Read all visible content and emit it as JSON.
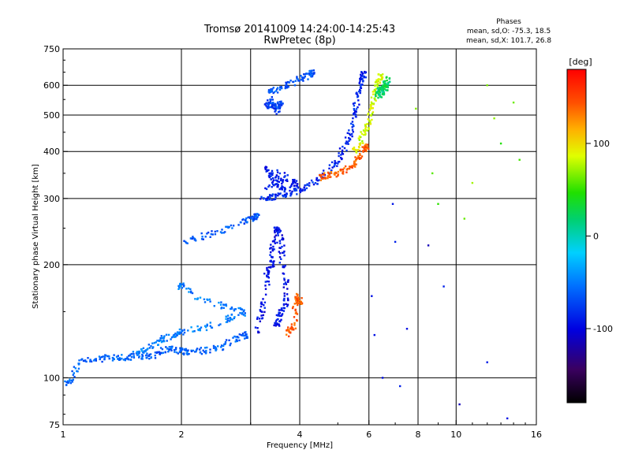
{
  "chart_data": {
    "type": "scatter",
    "title": "Tromsø 20141009 14:24:00-14:25:43",
    "subtitle": "RwPretec (8p)",
    "xlabel": "Frequency [MHz]",
    "ylabel": "Stationary phase Virtual Height [km]",
    "x_scale": "log",
    "y_scale": "log",
    "xlim": [
      1,
      16
    ],
    "ylim": [
      75,
      750
    ],
    "x_ticks": [
      {
        "v": 1,
        "label": "1"
      },
      {
        "v": 2,
        "label": "2"
      },
      {
        "v": 4,
        "label": "4"
      },
      {
        "v": 6,
        "label": "6"
      },
      {
        "v": 8,
        "label": "8"
      },
      {
        "v": 10,
        "label": "10"
      },
      {
        "v": 16,
        "label": "16"
      }
    ],
    "y_ticks": [
      {
        "v": 75,
        "label": "75"
      },
      {
        "v": 100,
        "label": "100"
      },
      {
        "v": 200,
        "label": "200"
      },
      {
        "v": 300,
        "label": "300"
      },
      {
        "v": 400,
        "label": "400"
      },
      {
        "v": 500,
        "label": "500"
      },
      {
        "v": 600,
        "label": "600"
      },
      {
        "v": 750,
        "label": "750"
      }
    ],
    "x_grid": [
      2,
      3,
      4,
      6,
      8,
      10
    ],
    "y_grid": [
      100,
      200,
      300,
      400,
      500,
      600
    ],
    "phase_info": {
      "heading": "Phases",
      "line1": "mean, sd,O: -75.3, 18.5",
      "line2": "mean, sd,X: 101.7, 26.8"
    },
    "colorbar": {
      "label": "[deg]",
      "range": [
        -180,
        180
      ],
      "ticks": [
        {
          "v": 100,
          "label": "100"
        },
        {
          "v": 0,
          "label": "0"
        },
        {
          "v": -100,
          "label": "-100"
        }
      ]
    },
    "traces": [
      {
        "name_hint": "E-layer low trace",
        "phase": -60,
        "points": [
          [
            1.0,
            97
          ],
          [
            1.05,
            98
          ],
          [
            1.1,
            110
          ],
          [
            1.2,
            112
          ],
          [
            1.3,
            113
          ],
          [
            1.4,
            113
          ],
          [
            1.5,
            114
          ],
          [
            1.6,
            114
          ],
          [
            1.7,
            115
          ],
          [
            1.8,
            118
          ],
          [
            1.9,
            120
          ],
          [
            2.0,
            118
          ],
          [
            2.1,
            117
          ],
          [
            2.3,
            118
          ],
          [
            2.5,
            120
          ],
          [
            2.7,
            125
          ],
          [
            2.9,
            130
          ]
        ]
      },
      {
        "name_hint": "E-layer upper cloud",
        "phase": -50,
        "points": [
          [
            1.5,
            115
          ],
          [
            1.6,
            118
          ],
          [
            1.7,
            122
          ],
          [
            1.8,
            127
          ],
          [
            1.9,
            130
          ],
          [
            2.0,
            132
          ],
          [
            2.2,
            135
          ],
          [
            2.5,
            140
          ],
          [
            2.7,
            145
          ],
          [
            2.9,
            150
          ],
          [
            2.6,
            155
          ],
          [
            2.3,
            160
          ],
          [
            2.0,
            175
          ]
        ]
      },
      {
        "name_hint": "F1 trace",
        "phase": -95,
        "points": [
          [
            3.1,
            130
          ],
          [
            3.2,
            150
          ],
          [
            3.3,
            170
          ],
          [
            3.3,
            190
          ],
          [
            3.4,
            200
          ],
          [
            3.4,
            220
          ],
          [
            3.5,
            240
          ],
          [
            3.5,
            250
          ],
          [
            3.6,
            230
          ],
          [
            3.6,
            200
          ],
          [
            3.7,
            180
          ],
          [
            3.7,
            160
          ],
          [
            3.6,
            150
          ],
          [
            3.5,
            140
          ]
        ]
      },
      {
        "name_hint": "F1 X trace",
        "phase": 140,
        "points": [
          [
            3.7,
            130
          ],
          [
            3.8,
            135
          ],
          [
            3.9,
            140
          ],
          [
            3.9,
            165
          ],
          [
            4.0,
            160
          ]
        ]
      },
      {
        "name_hint": "intermediate layer",
        "phase": -65,
        "points": [
          [
            2.0,
            230
          ],
          [
            2.2,
            235
          ],
          [
            2.5,
            245
          ],
          [
            2.8,
            255
          ],
          [
            3.0,
            265
          ],
          [
            3.1,
            268
          ]
        ]
      },
      {
        "name_hint": "F2 O-trace lower",
        "phase": -85,
        "points": [
          [
            3.2,
            300
          ],
          [
            3.4,
            302
          ],
          [
            3.6,
            305
          ],
          [
            3.8,
            310
          ],
          [
            4.0,
            315
          ],
          [
            4.2,
            325
          ],
          [
            4.5,
            340
          ],
          [
            4.8,
            360
          ],
          [
            5.0,
            380
          ],
          [
            5.2,
            410
          ],
          [
            5.4,
            450
          ],
          [
            5.5,
            500
          ],
          [
            5.6,
            550
          ],
          [
            5.7,
            600
          ],
          [
            5.8,
            640
          ]
        ]
      },
      {
        "name_hint": "F2 O-trace scatter",
        "phase": -90,
        "points": [
          [
            3.3,
            320
          ],
          [
            3.5,
            330
          ],
          [
            3.7,
            340
          ],
          [
            3.3,
            360
          ],
          [
            3.4,
            340
          ],
          [
            3.6,
            320
          ],
          [
            3.9,
            330
          ]
        ]
      },
      {
        "name_hint": "F2 X-trace",
        "phase": 140,
        "points": [
          [
            4.5,
            340
          ],
          [
            4.7,
            345
          ],
          [
            5.0,
            350
          ],
          [
            5.3,
            360
          ],
          [
            5.5,
            370
          ],
          [
            5.7,
            390
          ],
          [
            5.9,
            410
          ]
        ]
      },
      {
        "name_hint": "F2 X-trace upper",
        "phase": 85,
        "points": [
          [
            5.5,
            400
          ],
          [
            5.7,
            420
          ],
          [
            5.8,
            450
          ],
          [
            6.0,
            480
          ],
          [
            6.1,
            520
          ],
          [
            6.2,
            560
          ],
          [
            6.3,
            600
          ],
          [
            6.4,
            630
          ]
        ]
      },
      {
        "name_hint": "upper arc",
        "phase": -65,
        "points": [
          [
            3.3,
            575
          ],
          [
            3.5,
            585
          ],
          [
            3.7,
            600
          ],
          [
            3.9,
            615
          ],
          [
            4.1,
            630
          ],
          [
            4.3,
            645
          ]
        ]
      },
      {
        "name_hint": "upper cluster",
        "phase": -75,
        "points": [
          [
            3.4,
            520
          ],
          [
            3.5,
            530
          ],
          [
            3.6,
            540
          ],
          [
            3.5,
            510
          ],
          [
            3.4,
            550
          ],
          [
            3.3,
            530
          ]
        ]
      },
      {
        "name_hint": "top mixed",
        "phase": 20,
        "points": [
          [
            6.4,
            560
          ],
          [
            6.5,
            580
          ],
          [
            6.6,
            600
          ],
          [
            6.7,
            620
          ],
          [
            6.3,
            570
          ],
          [
            6.6,
            590
          ]
        ]
      },
      {
        "name_hint": "sparse noise",
        "phase": -100,
        "points": [
          [
            6.1,
            165
          ],
          [
            6.5,
            100
          ],
          [
            7.0,
            230
          ],
          [
            7.5,
            135
          ],
          [
            7.2,
            95
          ],
          [
            6.2,
            130
          ],
          [
            6.9,
            290
          ],
          [
            8.5,
            225
          ],
          [
            9.3,
            175
          ],
          [
            10.2,
            85
          ],
          [
            12.0,
            110
          ],
          [
            13.5,
            78
          ]
        ]
      },
      {
        "name_hint": "sparse noise colored",
        "phase": 60,
        "points": [
          [
            8.7,
            350
          ],
          [
            9.0,
            290
          ],
          [
            10.5,
            265
          ],
          [
            11.0,
            330
          ],
          [
            12.0,
            600
          ],
          [
            13.0,
            420
          ],
          [
            14.0,
            540
          ],
          [
            14.5,
            380
          ],
          [
            7.9,
            520
          ],
          [
            12.5,
            490
          ]
        ]
      }
    ]
  }
}
